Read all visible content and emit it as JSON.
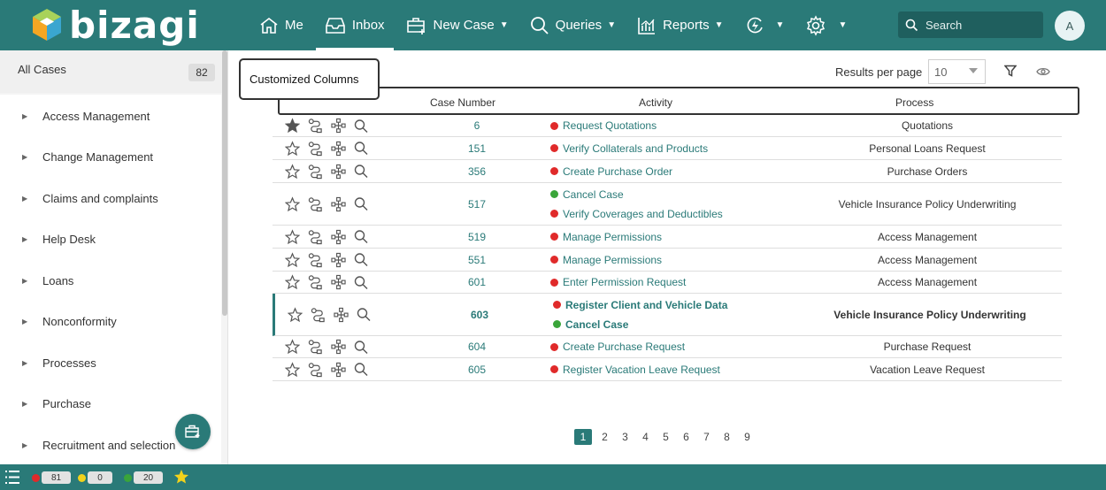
{
  "app": {
    "logo_text": "bizagi"
  },
  "nav": {
    "me": "Me",
    "inbox": "Inbox",
    "new_case": "New Case",
    "queries": "Queries",
    "reports": "Reports"
  },
  "search": {
    "placeholder": "Search"
  },
  "user": {
    "avatar_initial": "A"
  },
  "sidebar": {
    "all_cases_label": "All Cases",
    "all_cases_count": "82",
    "items": [
      {
        "label": "Access Management"
      },
      {
        "label": "Change Management"
      },
      {
        "label": "Claims and complaints"
      },
      {
        "label": "Help Desk"
      },
      {
        "label": "Loans"
      },
      {
        "label": "Nonconformity"
      },
      {
        "label": "Processes"
      },
      {
        "label": "Purchase"
      },
      {
        "label": "Recruitment and selection"
      }
    ]
  },
  "toolbar": {
    "results_per_page_label": "Results per page",
    "results_per_page_value": "10"
  },
  "callout": {
    "label": "Customized Columns"
  },
  "table": {
    "headers": {
      "case_number": "Case Number",
      "activity": "Activity",
      "process": "Process"
    },
    "rows": [
      {
        "case": "6",
        "favorite": true,
        "activities": [
          {
            "label": "Request Quotations",
            "status": "red"
          }
        ],
        "process": "Quotations"
      },
      {
        "case": "151",
        "favorite": false,
        "activities": [
          {
            "label": "Verify Collaterals and Products",
            "status": "red"
          }
        ],
        "process": "Personal Loans Request"
      },
      {
        "case": "356",
        "favorite": false,
        "activities": [
          {
            "label": "Create Purchase Order",
            "status": "red"
          }
        ],
        "process": "Purchase Orders"
      },
      {
        "case": "517",
        "favorite": false,
        "activities": [
          {
            "label": "Cancel Case",
            "status": "green"
          },
          {
            "label": "Verify Coverages and Deductibles",
            "status": "red"
          }
        ],
        "process": "Vehicle Insurance Policy Underwriting"
      },
      {
        "case": "519",
        "favorite": false,
        "activities": [
          {
            "label": "Manage Permissions",
            "status": "red"
          }
        ],
        "process": "Access Management"
      },
      {
        "case": "551",
        "favorite": false,
        "activities": [
          {
            "label": "Manage Permissions",
            "status": "red"
          }
        ],
        "process": "Access Management"
      },
      {
        "case": "601",
        "favorite": false,
        "activities": [
          {
            "label": "Enter Permission Request",
            "status": "red"
          }
        ],
        "process": "Access Management"
      },
      {
        "case": "603",
        "favorite": false,
        "bold": true,
        "activities": [
          {
            "label": "Register Client and Vehicle Data",
            "status": "red"
          },
          {
            "label": "Cancel Case",
            "status": "green"
          }
        ],
        "process": "Vehicle Insurance Policy Underwriting"
      },
      {
        "case": "604",
        "favorite": false,
        "activities": [
          {
            "label": "Create Purchase Request",
            "status": "red"
          }
        ],
        "process": "Purchase Request"
      },
      {
        "case": "605",
        "favorite": false,
        "activities": [
          {
            "label": "Register Vacation Leave Request",
            "status": "red"
          }
        ],
        "process": "Vacation Leave Request"
      }
    ]
  },
  "pagination": {
    "pages": [
      "1",
      "2",
      "3",
      "4",
      "5",
      "6",
      "7",
      "8",
      "9"
    ],
    "current": "1"
  },
  "footer": {
    "overdue": "81",
    "at_risk": "0",
    "on_time": "20"
  },
  "colors": {
    "brand": "#2a7a78",
    "red_status": "#e02a2a",
    "green_status": "#3aa53a",
    "yellow_status": "#f2d21b"
  }
}
